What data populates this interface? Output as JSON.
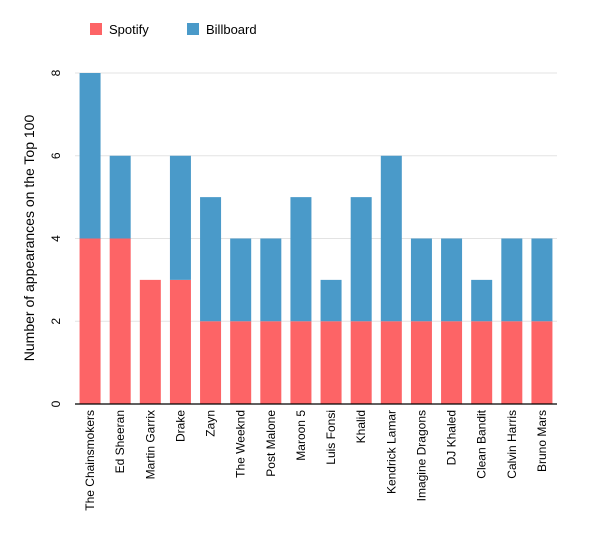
{
  "chart_data": {
    "type": "bar",
    "stacked": true,
    "categories": [
      "The Chainsmokers",
      "Ed Sheeran",
      "Martin Garrix",
      "Drake",
      "Zayn",
      "The Weeknd",
      "Post Malone",
      "Maroon 5",
      "Luis Fonsi",
      "Khalid",
      "Kendrick Lamar",
      "Imagine Dragons",
      "DJ Khaled",
      "Clean Bandit",
      "Calvin Harris",
      "Bruno Mars"
    ],
    "series": [
      {
        "name": "Spotify",
        "color": "#fd6466",
        "values": [
          4,
          4,
          3,
          3,
          2,
          2,
          2,
          2,
          2,
          2,
          2,
          2,
          2,
          2,
          2,
          2
        ]
      },
      {
        "name": "Billboard",
        "color": "#4a9ac9",
        "values": [
          4,
          2,
          0,
          3,
          3,
          2,
          2,
          3,
          1,
          3,
          4,
          2,
          2,
          1,
          2,
          2
        ]
      }
    ],
    "title": "",
    "xlabel": "",
    "ylabel": "Number of appearances on the Top 100",
    "ylim": [
      0,
      8
    ],
    "yticks": [
      0,
      2,
      4,
      6,
      8
    ],
    "grid": true,
    "legend_position": "top-left"
  }
}
